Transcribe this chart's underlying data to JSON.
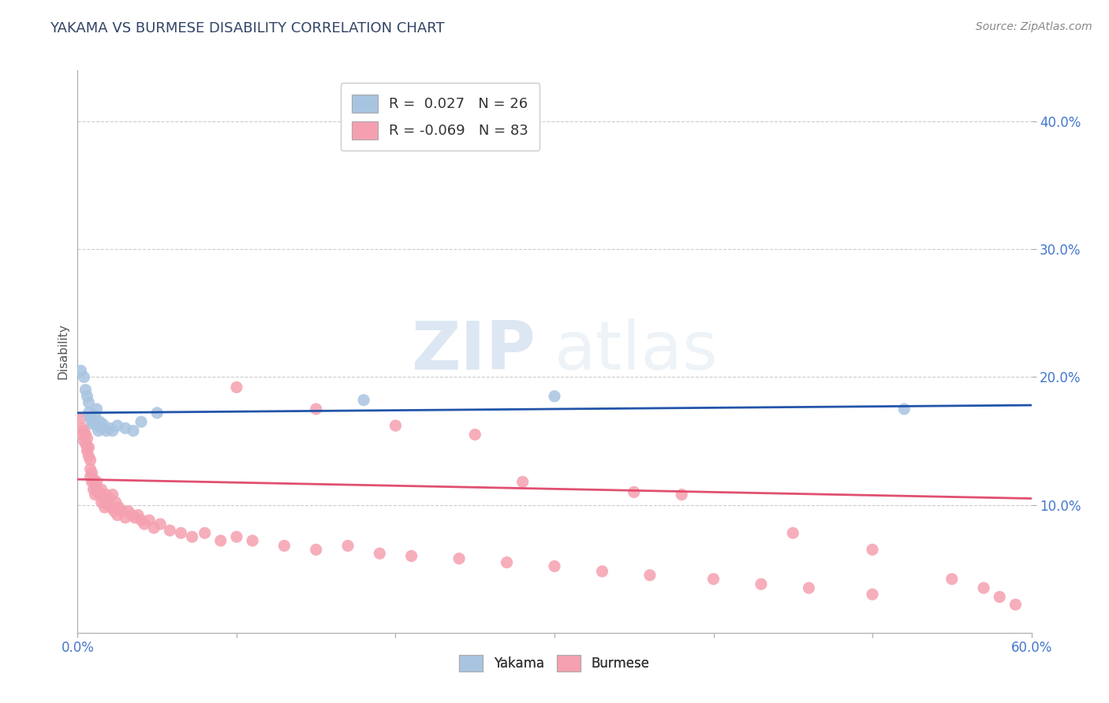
{
  "title": "YAKAMA VS BURMESE DISABILITY CORRELATION CHART",
  "source": "Source: ZipAtlas.com",
  "ylabel": "Disability",
  "xlim": [
    0.0,
    0.6
  ],
  "ylim": [
    0.0,
    0.44
  ],
  "xticks": [
    0.0,
    0.1,
    0.2,
    0.3,
    0.4,
    0.5,
    0.6
  ],
  "yticks": [
    0.1,
    0.2,
    0.3,
    0.4
  ],
  "grid_color": "#cccccc",
  "background_color": "#ffffff",
  "yakama_color": "#a8c4e0",
  "burmese_color": "#f5a0b0",
  "yakama_line_color": "#2255aa",
  "burmese_line_color": "#e05070",
  "legend_R_yakama": "0.027",
  "legend_N_yakama": "26",
  "legend_R_burmese": "-0.069",
  "legend_N_burmese": "83",
  "watermark_zip": "ZIP",
  "watermark_atlas": "atlas",
  "yakama_x": [
    0.002,
    0.004,
    0.005,
    0.006,
    0.007,
    0.007,
    0.008,
    0.009,
    0.01,
    0.011,
    0.012,
    0.013,
    0.014,
    0.015,
    0.016,
    0.018,
    0.02,
    0.022,
    0.025,
    0.03,
    0.035,
    0.04,
    0.05,
    0.18,
    0.3,
    0.52
  ],
  "yakama_y": [
    0.205,
    0.2,
    0.19,
    0.185,
    0.18,
    0.172,
    0.168,
    0.165,
    0.163,
    0.17,
    0.175,
    0.158,
    0.165,
    0.16,
    0.163,
    0.158,
    0.16,
    0.158,
    0.162,
    0.16,
    0.158,
    0.165,
    0.172,
    0.182,
    0.185,
    0.175
  ],
  "burmese_x": [
    0.002,
    0.003,
    0.003,
    0.004,
    0.004,
    0.005,
    0.005,
    0.006,
    0.006,
    0.006,
    0.007,
    0.007,
    0.008,
    0.008,
    0.008,
    0.009,
    0.009,
    0.01,
    0.01,
    0.011,
    0.011,
    0.012,
    0.012,
    0.013,
    0.014,
    0.015,
    0.015,
    0.016,
    0.017,
    0.018,
    0.019,
    0.02,
    0.021,
    0.022,
    0.023,
    0.024,
    0.025,
    0.026,
    0.028,
    0.03,
    0.032,
    0.034,
    0.036,
    0.038,
    0.04,
    0.042,
    0.045,
    0.048,
    0.052,
    0.058,
    0.065,
    0.072,
    0.08,
    0.09,
    0.1,
    0.11,
    0.13,
    0.15,
    0.17,
    0.19,
    0.21,
    0.24,
    0.27,
    0.3,
    0.33,
    0.36,
    0.4,
    0.43,
    0.46,
    0.5,
    0.28,
    0.35,
    0.1,
    0.15,
    0.2,
    0.25,
    0.38,
    0.45,
    0.5,
    0.55,
    0.57,
    0.58,
    0.59
  ],
  "burmese_y": [
    0.168,
    0.16,
    0.155,
    0.15,
    0.158,
    0.148,
    0.155,
    0.145,
    0.152,
    0.142,
    0.138,
    0.145,
    0.135,
    0.128,
    0.122,
    0.125,
    0.118,
    0.12,
    0.112,
    0.115,
    0.108,
    0.112,
    0.118,
    0.11,
    0.108,
    0.112,
    0.102,
    0.105,
    0.098,
    0.108,
    0.1,
    0.105,
    0.098,
    0.108,
    0.095,
    0.102,
    0.092,
    0.098,
    0.095,
    0.09,
    0.095,
    0.092,
    0.09,
    0.092,
    0.088,
    0.085,
    0.088,
    0.082,
    0.085,
    0.08,
    0.078,
    0.075,
    0.078,
    0.072,
    0.075,
    0.072,
    0.068,
    0.065,
    0.068,
    0.062,
    0.06,
    0.058,
    0.055,
    0.052,
    0.048,
    0.045,
    0.042,
    0.038,
    0.035,
    0.03,
    0.118,
    0.11,
    0.192,
    0.175,
    0.162,
    0.155,
    0.108,
    0.078,
    0.065,
    0.042,
    0.035,
    0.028,
    0.022
  ]
}
